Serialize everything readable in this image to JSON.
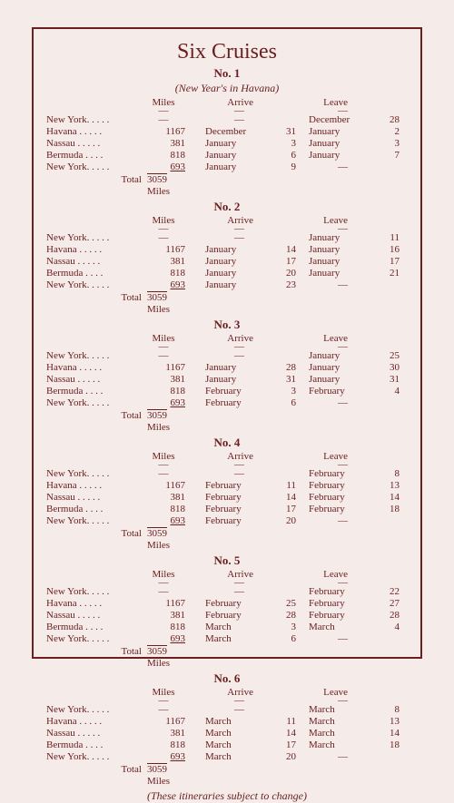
{
  "title": "Six Cruises",
  "subtitle_1": "(New Year's in Havana)",
  "footnote": "(These itineraries subject to change)",
  "headers": {
    "miles": "Miles",
    "arrive": "Arrive",
    "leave": "Leave"
  },
  "total_label": "Total",
  "total_miles_suffix": "Miles",
  "cruises": [
    {
      "no": "No. 1",
      "subtitle": true,
      "rows": [
        {
          "port": "New York.  .   .   .   .",
          "miles": "—",
          "am": "—",
          "ad": "",
          "lm": "December",
          "ld": "28"
        },
        {
          "port": "Havana  .   .   .   .   .",
          "miles": "1167",
          "am": "December",
          "ad": "31",
          "lm": "January",
          "ld": "2"
        },
        {
          "port": "Nassau .   .   .   .   .",
          "miles": "381",
          "am": "January",
          "ad": "3",
          "lm": "January",
          "ld": "3"
        },
        {
          "port": "Bermuda   .   .   .   .",
          "miles": "818",
          "am": "January",
          "ad": "6",
          "lm": "January",
          "ld": "7"
        },
        {
          "port": "New York.  .   .   .   .",
          "miles": "693",
          "am": "January",
          "ad": "9",
          "lm": "—",
          "ld": ""
        }
      ],
      "total": "3059"
    },
    {
      "no": "No. 2",
      "rows": [
        {
          "port": "New York.  .   .   .   .",
          "miles": "—",
          "am": "—",
          "ad": "",
          "lm": "January",
          "ld": "11"
        },
        {
          "port": "Havana  .   .   .   .   .",
          "miles": "1167",
          "am": "January",
          "ad": "14",
          "lm": "January",
          "ld": "16"
        },
        {
          "port": "Nassau .   .   .   .   .",
          "miles": "381",
          "am": "January",
          "ad": "17",
          "lm": "January",
          "ld": "17"
        },
        {
          "port": "Bermuda   .   .   .   .",
          "miles": "818",
          "am": "January",
          "ad": "20",
          "lm": "January",
          "ld": "21"
        },
        {
          "port": "New York.  .   .   .   .",
          "miles": "693",
          "am": "January",
          "ad": "23",
          "lm": "—",
          "ld": ""
        }
      ],
      "total": "3059"
    },
    {
      "no": "No. 3",
      "rows": [
        {
          "port": "New York.  .   .   .   .",
          "miles": "—",
          "am": "—",
          "ad": "",
          "lm": "January",
          "ld": "25"
        },
        {
          "port": "Havana  .   .   .   .   .",
          "miles": "1167",
          "am": "January",
          "ad": "28",
          "lm": "January",
          "ld": "30"
        },
        {
          "port": "Nassau .   .   .   .   .",
          "miles": "381",
          "am": "January",
          "ad": "31",
          "lm": "January",
          "ld": "31"
        },
        {
          "port": "Bermuda   .   .   .   .",
          "miles": "818",
          "am": "February",
          "ad": "3",
          "lm": "February",
          "ld": "4"
        },
        {
          "port": "New York.  .   .   .   .",
          "miles": "693",
          "am": "February",
          "ad": "6",
          "lm": "—",
          "ld": ""
        }
      ],
      "total": "3059"
    },
    {
      "no": "No. 4",
      "rows": [
        {
          "port": "New York.  .   .   .   .",
          "miles": "—",
          "am": "—",
          "ad": "",
          "lm": "February",
          "ld": "8"
        },
        {
          "port": "Havana  .   .   .   .   .",
          "miles": "1167",
          "am": "February",
          "ad": "11",
          "lm": "February",
          "ld": "13"
        },
        {
          "port": "Nassau .   .   .   .   .",
          "miles": "381",
          "am": "February",
          "ad": "14",
          "lm": "February",
          "ld": "14"
        },
        {
          "port": "Bermuda   .   .   .   .",
          "miles": "818",
          "am": "February",
          "ad": "17",
          "lm": "February",
          "ld": "18"
        },
        {
          "port": "New York.  .   .   .   .",
          "miles": "693",
          "am": "February",
          "ad": "20",
          "lm": "—",
          "ld": ""
        }
      ],
      "total": "3059"
    },
    {
      "no": "No. 5",
      "rows": [
        {
          "port": "New York.  .   .   .   .",
          "miles": "—",
          "am": "—",
          "ad": "",
          "lm": "February",
          "ld": "22"
        },
        {
          "port": "Havana  .   .   .   .   .",
          "miles": "1167",
          "am": "February",
          "ad": "25",
          "lm": "February",
          "ld": "27"
        },
        {
          "port": "Nassau .   .   .   .   .",
          "miles": "381",
          "am": "February",
          "ad": "28",
          "lm": "February",
          "ld": "28"
        },
        {
          "port": "Bermuda   .   .   .   .",
          "miles": "818",
          "am": "March",
          "ad": "3",
          "lm": "March",
          "ld": "4"
        },
        {
          "port": "New York.  .   .   .   .",
          "miles": "693",
          "am": "March",
          "ad": "6",
          "lm": "—",
          "ld": ""
        }
      ],
      "total": "3059"
    },
    {
      "no": "No. 6",
      "rows": [
        {
          "port": "New York.  .   .   .   .",
          "miles": "—",
          "am": "—",
          "ad": "",
          "lm": "March",
          "ld": "8"
        },
        {
          "port": "Havana  .   .   .   .   .",
          "miles": "1167",
          "am": "March",
          "ad": "11",
          "lm": "March",
          "ld": "13"
        },
        {
          "port": "Nassau .   .   .   .   .",
          "miles": "381",
          "am": "March",
          "ad": "14",
          "lm": "March",
          "ld": "14"
        },
        {
          "port": "Bermuda   .   .   .   .",
          "miles": "818",
          "am": "March",
          "ad": "17",
          "lm": "March",
          "ld": "18"
        },
        {
          "port": "New York.  .   .   .   .",
          "miles": "693",
          "am": "March",
          "ad": "20",
          "lm": "—",
          "ld": ""
        }
      ],
      "total": "3059"
    }
  ]
}
